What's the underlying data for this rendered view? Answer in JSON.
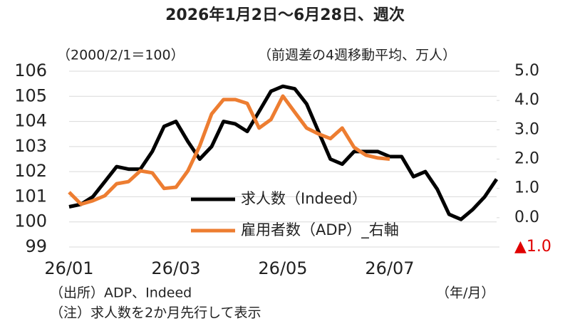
{
  "chart_data": {
    "type": "line",
    "title": "2026年1月2日～6月28日、週次",
    "y_axis_note": "（2000/2/1＝100）",
    "y2_axis_note": "（前週差の4週移動平均、万人）",
    "x_axis_note": "（年/月）",
    "notes": [
      "（出所）ADP、Indeed",
      "（注）求人数を2か月先行して表示"
    ],
    "categories": [
      "26/01",
      null,
      null,
      null,
      null,
      null,
      null,
      null,
      null,
      "26/03",
      null,
      null,
      null,
      null,
      null,
      null,
      null,
      null,
      "26/05",
      null,
      null,
      null,
      null,
      null,
      null,
      null,
      null,
      "26/07",
      null,
      null,
      null,
      null,
      null,
      null,
      null,
      null,
      null
    ],
    "series": [
      {
        "name": "求人数（Indeed）",
        "color": "#000000",
        "values": [
          100.6,
          100.7,
          101.0,
          101.6,
          102.2,
          102.1,
          102.1,
          102.8,
          103.8,
          104.0,
          103.2,
          102.5,
          103.0,
          104.0,
          103.9,
          103.6,
          104.4,
          105.2,
          105.4,
          105.3,
          104.7,
          103.6,
          102.5,
          102.3,
          102.8,
          102.8,
          102.8,
          102.6,
          102.6,
          101.8,
          102.0,
          101.3,
          100.3,
          100.1,
          100.5,
          101.0,
          101.7
        ]
      },
      {
        "name": "雇用者数（ADP）_右軸",
        "color": "#ed7d31",
        "axis": "y2",
        "values": [
          0.87,
          0.46,
          0.58,
          0.75,
          1.16,
          1.23,
          1.6,
          1.53,
          1.0,
          1.04,
          1.6,
          2.45,
          3.54,
          4.03,
          4.03,
          3.9,
          3.06,
          3.35,
          4.15,
          3.6,
          3.06,
          2.86,
          2.7,
          3.06,
          2.4,
          2.13,
          2.04,
          2.0,
          null,
          null,
          null,
          null,
          null,
          null,
          null,
          null,
          null
        ]
      }
    ],
    "ylim": [
      99,
      106
    ],
    "yticks": [
      99,
      100,
      101,
      102,
      103,
      104,
      105,
      106
    ],
    "y2lim": [
      -1,
      5
    ],
    "y2ticks": [
      {
        "value": -1,
        "label": "▲1.0"
      },
      {
        "value": 0,
        "label": "0.0"
      },
      {
        "value": 1,
        "label": "1.0"
      },
      {
        "value": 2,
        "label": "2.0"
      },
      {
        "value": 3,
        "label": "3.0"
      },
      {
        "value": 4,
        "label": "4.0"
      },
      {
        "value": 5,
        "label": "5.0"
      }
    ],
    "negative_tick_color": "#e00000",
    "grid": true
  }
}
